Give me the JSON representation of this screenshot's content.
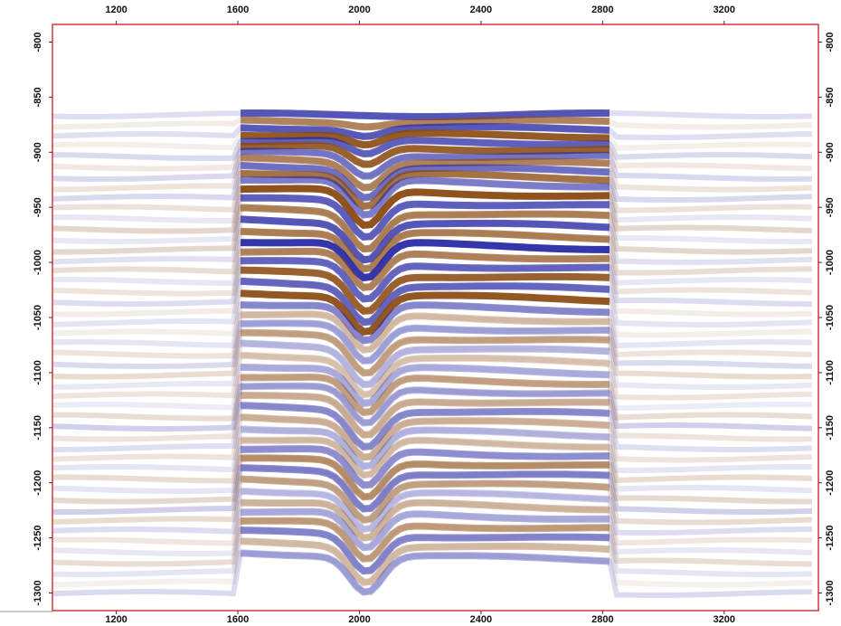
{
  "chart_data": {
    "type": "seismic",
    "xlim": [
      990,
      3510
    ],
    "xticks": [
      1200,
      1600,
      2000,
      2400,
      2800,
      3200
    ],
    "ylim": [
      -1316,
      -784
    ],
    "yticks": [
      -800,
      -850,
      -900,
      -950,
      -1000,
      -1050,
      -1100,
      -1150,
      -1200,
      -1250,
      -1300
    ],
    "frame_color": "#d9363e",
    "colors": [
      "#2b2ba6",
      "#8a4a12"
    ]
  }
}
